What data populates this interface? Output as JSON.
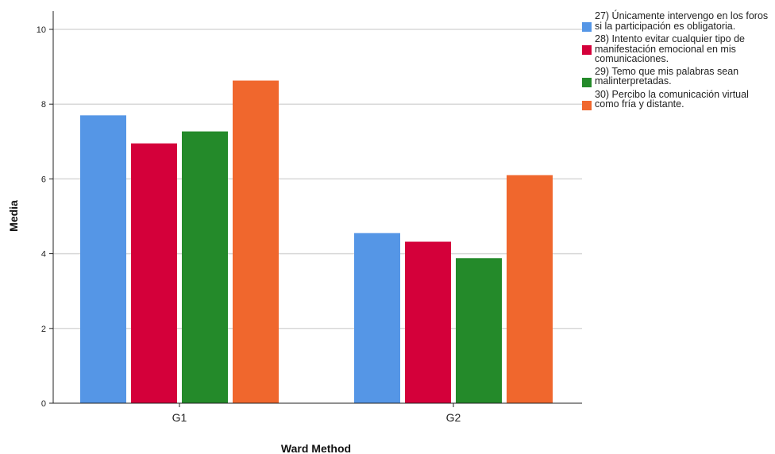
{
  "chart_data": {
    "type": "bar",
    "categories": [
      "G1",
      "G2"
    ],
    "series": [
      {
        "name": "27) Únicamente intervengo en los foros si la participación es obligatoria.",
        "values": [
          7.7,
          4.55
        ],
        "color": "#5596e6"
      },
      {
        "name": "28) Intento evitar cualquier tipo de manifestación emocional en mis comunicaciones.",
        "values": [
          6.95,
          4.32
        ],
        "color": "#d4003a"
      },
      {
        "name": "29) Temo que mis palabras sean malinterpretadas.",
        "values": [
          7.27,
          3.88
        ],
        "color": "#248a2a"
      },
      {
        "name": "30) Percibo la comunicación virtual como fría y distante.",
        "values": [
          8.63,
          6.1
        ],
        "color": "#f0672d"
      }
    ],
    "xlabel": "Ward Method",
    "ylabel": "Media",
    "ylim": [
      0,
      10
    ],
    "yticks": [
      "0",
      "2",
      "4",
      "6",
      "8",
      "10"
    ],
    "grid": true,
    "legend": "top-right"
  }
}
